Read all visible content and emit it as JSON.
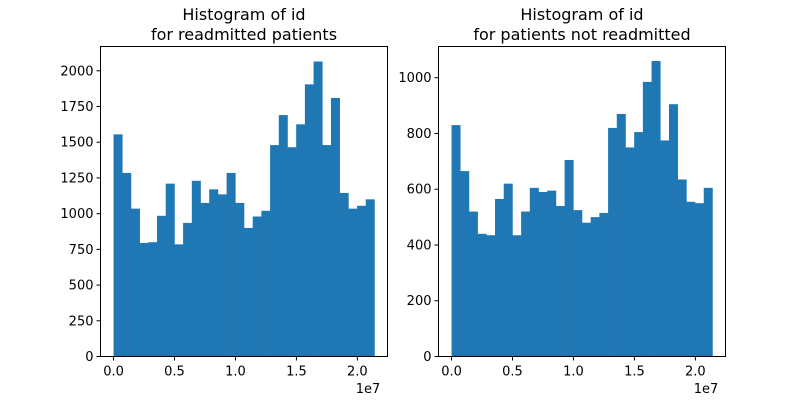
{
  "chart_data": [
    {
      "type": "bar",
      "title_line1": "Histogram of id",
      "title_line2": "for readmitted patients",
      "xlabel": "",
      "ylabel": "",
      "x_offset_label": "1e7",
      "xlim": [
        -0.107,
        2.247
      ],
      "ylim": [
        0,
        2170
      ],
      "x_ticks": [
        {
          "value": 0.0,
          "label": "0.0"
        },
        {
          "value": 0.5,
          "label": "0.5"
        },
        {
          "value": 1.0,
          "label": "1.0"
        },
        {
          "value": 1.5,
          "label": "1.5"
        },
        {
          "value": 2.0,
          "label": "2.0"
        }
      ],
      "y_ticks": [
        {
          "value": 0,
          "label": "0"
        },
        {
          "value": 250,
          "label": "250"
        },
        {
          "value": 500,
          "label": "500"
        },
        {
          "value": 750,
          "label": "750"
        },
        {
          "value": 1000,
          "label": "1000"
        },
        {
          "value": 1250,
          "label": "1250"
        },
        {
          "value": 1500,
          "label": "1500"
        },
        {
          "value": 1750,
          "label": "1750"
        },
        {
          "value": 2000,
          "label": "2000"
        }
      ],
      "bin_start": 0.0,
      "bin_end": 2.14,
      "values": [
        1555,
        1285,
        1035,
        795,
        800,
        985,
        1210,
        785,
        935,
        1230,
        1075,
        1170,
        1135,
        1285,
        1075,
        900,
        980,
        1020,
        1480,
        1690,
        1465,
        1625,
        1905,
        2065,
        1480,
        1810,
        1145,
        1035,
        1055,
        1100
      ],
      "color": "#1f77b4"
    },
    {
      "type": "bar",
      "title_line1": "Histogram of id",
      "title_line2": "for patients not readmitted",
      "xlabel": "",
      "ylabel": "",
      "x_offset_label": "1e7",
      "xlim": [
        -0.107,
        2.247
      ],
      "ylim": [
        0,
        1112
      ],
      "x_ticks": [
        {
          "value": 0.0,
          "label": "0.0"
        },
        {
          "value": 0.5,
          "label": "0.5"
        },
        {
          "value": 1.0,
          "label": "1.0"
        },
        {
          "value": 1.5,
          "label": "1.5"
        },
        {
          "value": 2.0,
          "label": "2.0"
        }
      ],
      "y_ticks": [
        {
          "value": 0,
          "label": "0"
        },
        {
          "value": 200,
          "label": "200"
        },
        {
          "value": 400,
          "label": "400"
        },
        {
          "value": 600,
          "label": "600"
        },
        {
          "value": 800,
          "label": "800"
        },
        {
          "value": 1000,
          "label": "1000"
        }
      ],
      "bin_start": 0.0,
      "bin_end": 2.14,
      "values": [
        830,
        665,
        520,
        440,
        435,
        565,
        620,
        435,
        520,
        605,
        590,
        595,
        540,
        705,
        525,
        480,
        500,
        515,
        820,
        870,
        750,
        805,
        985,
        1060,
        775,
        905,
        635,
        555,
        550,
        605
      ],
      "color": "#1f77b4"
    }
  ]
}
